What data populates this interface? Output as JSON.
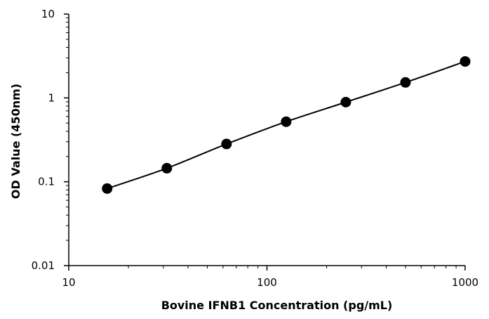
{
  "chart_data": {
    "type": "scatter",
    "title": "",
    "xlabel": "Bovine IFNB1 Concentration (pg/mL)",
    "ylabel": "OD Value (450nm)",
    "x_scale": "log",
    "y_scale": "log",
    "xlim": [
      10,
      1000
    ],
    "ylim": [
      0.01,
      10
    ],
    "x_ticks": [
      10,
      100,
      1000
    ],
    "x_tick_labels": [
      "10",
      "100",
      "1000"
    ],
    "y_ticks": [
      0.01,
      0.1,
      1,
      10
    ],
    "y_tick_labels": [
      "0.01",
      "0.1",
      "1",
      "10"
    ],
    "grid": false,
    "legend": "none",
    "series": [
      {
        "x": [
          15.625,
          31.25,
          62.5,
          125,
          250,
          500,
          1000
        ],
        "y": [
          0.083,
          0.145,
          0.282,
          0.52,
          0.89,
          1.53,
          2.72
        ],
        "color": "#000000",
        "marker": "circle",
        "fit_line": true
      }
    ]
  }
}
